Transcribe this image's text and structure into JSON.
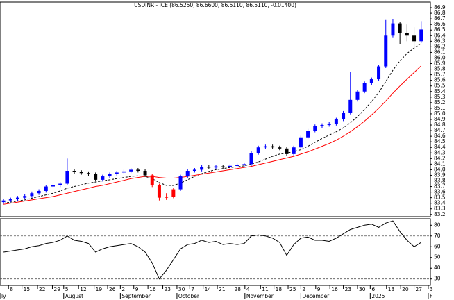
{
  "chart_data": {
    "type": "candlestick",
    "title": "USDINR - ICE (86.5250, 86.6600, 86.5110, 86.5110, -0.01400)",
    "open": [
      83.42,
      83.45,
      83.47,
      83.5,
      83.53,
      83.58,
      83.62,
      83.7,
      83.72,
      83.75,
      83.98,
      83.96,
      83.94,
      83.92,
      83.82,
      83.88,
      83.92,
      83.95,
      83.97,
      84.0,
      83.98,
      83.9,
      83.72,
      83.5,
      83.52,
      83.65,
      83.88,
      83.98,
      84.0,
      84.05,
      84.04,
      84.06,
      84.05,
      84.07,
      84.08,
      84.1,
      84.3,
      84.4,
      84.42,
      84.4,
      84.38,
      84.28,
      84.4,
      84.58,
      84.7,
      84.78,
      84.8,
      84.82,
      84.9,
      85.02,
      85.25,
      85.4,
      85.55,
      85.62,
      85.85,
      86.4,
      86.62,
      86.45,
      86.4,
      86.3
    ],
    "high": [
      83.48,
      83.5,
      83.53,
      83.56,
      83.61,
      83.65,
      83.73,
      83.75,
      83.78,
      84.2,
      84.01,
      83.99,
      83.97,
      83.95,
      83.91,
      83.95,
      83.98,
      84.0,
      84.03,
      84.03,
      84.01,
      83.93,
      83.75,
      83.58,
      83.68,
      83.91,
      84.01,
      84.03,
      84.08,
      84.08,
      84.09,
      84.09,
      84.1,
      84.11,
      84.13,
      84.33,
      84.43,
      84.45,
      84.45,
      84.43,
      84.41,
      84.43,
      84.61,
      84.73,
      84.81,
      84.83,
      84.85,
      84.93,
      85.05,
      85.75,
      85.43,
      85.58,
      85.65,
      85.88,
      86.68,
      86.7,
      86.65,
      86.6,
      86.55,
      86.66
    ],
    "low": [
      83.39,
      83.42,
      83.44,
      83.47,
      83.5,
      83.55,
      83.59,
      83.67,
      83.69,
      83.72,
      83.93,
      83.91,
      83.89,
      83.79,
      83.79,
      83.85,
      83.89,
      83.92,
      83.94,
      83.95,
      83.87,
      83.69,
      83.45,
      83.46,
      83.49,
      83.62,
      83.85,
      83.95,
      83.97,
      84.01,
      84.01,
      84.02,
      84.02,
      84.04,
      84.05,
      84.07,
      84.27,
      84.37,
      84.37,
      84.35,
      84.25,
      84.25,
      84.37,
      84.55,
      84.67,
      84.75,
      84.77,
      84.79,
      84.87,
      84.99,
      85.22,
      85.37,
      85.52,
      85.59,
      85.82,
      86.37,
      86.25,
      86.3,
      86.15,
      86.27
    ],
    "close": [
      83.45,
      83.47,
      83.5,
      83.53,
      83.58,
      83.62,
      83.7,
      83.72,
      83.75,
      83.98,
      83.96,
      83.94,
      83.92,
      83.82,
      83.88,
      83.92,
      83.95,
      83.97,
      84.0,
      83.98,
      83.9,
      83.72,
      83.5,
      83.52,
      83.65,
      83.88,
      83.98,
      84.0,
      84.05,
      84.04,
      84.06,
      84.05,
      84.07,
      84.08,
      84.1,
      84.3,
      84.4,
      84.42,
      84.4,
      84.38,
      84.28,
      84.4,
      84.58,
      84.7,
      84.78,
      84.8,
      84.82,
      84.9,
      85.02,
      85.25,
      85.4,
      85.55,
      85.62,
      85.85,
      86.4,
      86.62,
      86.45,
      86.4,
      86.3,
      86.51
    ],
    "up_color": "#0000ff",
    "down_color": "#000000",
    "below_slow_average_color": "#ff0000",
    "overlays": [
      {
        "color": "#000000",
        "dashed": true,
        "values": [
          83.4,
          83.42,
          83.44,
          83.46,
          83.49,
          83.52,
          83.55,
          83.58,
          83.62,
          83.67,
          83.7,
          83.73,
          83.76,
          83.78,
          83.8,
          83.82,
          83.84,
          83.86,
          83.88,
          83.89,
          83.88,
          83.84,
          83.77,
          83.72,
          83.72,
          83.76,
          83.82,
          83.88,
          83.93,
          83.97,
          84.0,
          84.02,
          84.04,
          84.05,
          84.07,
          84.1,
          84.14,
          84.19,
          84.24,
          84.28,
          84.3,
          84.32,
          84.36,
          84.42,
          84.49,
          84.56,
          84.62,
          84.68,
          84.75,
          84.84,
          84.95,
          85.08,
          85.22,
          85.38,
          85.58,
          85.78,
          85.95,
          86.08,
          86.18,
          86.26
        ]
      },
      {
        "color": "#ff0000",
        "dashed": false,
        "values": [
          83.38,
          83.4,
          83.42,
          83.44,
          83.46,
          83.48,
          83.5,
          83.52,
          83.55,
          83.58,
          83.61,
          83.64,
          83.67,
          83.7,
          83.72,
          83.75,
          83.78,
          83.81,
          83.84,
          83.86,
          83.88,
          83.88,
          83.86,
          83.85,
          83.85,
          83.86,
          83.88,
          83.9,
          83.92,
          83.94,
          83.96,
          83.98,
          84.0,
          84.02,
          84.04,
          84.06,
          84.09,
          84.12,
          84.15,
          84.18,
          84.21,
          84.24,
          84.28,
          84.32,
          84.37,
          84.42,
          84.47,
          84.53,
          84.6,
          84.68,
          84.77,
          84.87,
          84.98,
          85.1,
          85.23,
          85.37,
          85.5,
          85.62,
          85.74,
          85.86
        ]
      }
    ],
    "xlim": [
      -0.5,
      60.3
    ],
    "ylim": [
      83.16,
      87.0
    ],
    "yticks": [
      83.2,
      83.3,
      83.4,
      83.5,
      83.6,
      83.7,
      83.8,
      83.9,
      {
        "value": 84,
        "label": "84.0"
      },
      84.1,
      84.2,
      84.3,
      84.4,
      84.5,
      84.6,
      84.7,
      84.8,
      84.9,
      {
        "value": 85,
        "label": "85.0"
      },
      85.1,
      85.2,
      85.3,
      85.4,
      85.5,
      85.6,
      85.7,
      85.8,
      85.9,
      {
        "value": 86,
        "label": "86.0"
      },
      86.1,
      86.2,
      86.3,
      86.4,
      86.5,
      86.6,
      86.7,
      86.8,
      86.9
    ],
    "day_ticks": [
      {
        "value": 0.7,
        "label": "8"
      },
      {
        "value": 2.6,
        "label": "15"
      },
      {
        "value": 4.8,
        "label": "22"
      },
      {
        "value": 6.9,
        "label": "29"
      },
      {
        "value": 8.5,
        "label": "5"
      },
      {
        "value": 10.6,
        "label": "12"
      },
      {
        "value": 12.8,
        "label": "19"
      },
      {
        "value": 14.7,
        "label": "26"
      },
      {
        "value": 16.5,
        "label": "2"
      },
      {
        "value": 18.4,
        "label": "9"
      },
      {
        "value": 20.4,
        "label": "16"
      },
      {
        "value": 22.5,
        "label": "23"
      },
      {
        "value": 24.5,
        "label": "30"
      },
      {
        "value": 26.3,
        "label": "7"
      },
      {
        "value": 28.2,
        "label": "14"
      },
      {
        "value": 30.2,
        "label": "21"
      },
      {
        "value": 32.4,
        "label": "28"
      },
      {
        "value": 34.1,
        "label": "4"
      },
      {
        "value": 36.3,
        "label": "11"
      },
      {
        "value": 38.2,
        "label": "18"
      },
      {
        "value": 40.2,
        "label": "25"
      },
      {
        "value": 42.0,
        "label": "2"
      },
      {
        "value": 44.1,
        "label": "9"
      },
      {
        "value": 46.1,
        "label": "16"
      },
      {
        "value": 48.0,
        "label": "23"
      },
      {
        "value": 50.0,
        "label": "30"
      },
      {
        "value": 51.8,
        "label": "6"
      },
      {
        "value": 54.1,
        "label": "13"
      },
      {
        "value": 56.1,
        "label": "20"
      },
      {
        "value": 58.0,
        "label": "27"
      },
      {
        "value": 60.0,
        "label": "3"
      }
    ],
    "month_ticks": [
      {
        "value": -0.5,
        "label": "ly"
      },
      {
        "value": 8.5,
        "label": "August"
      },
      {
        "value": 16.5,
        "label": "September"
      },
      {
        "value": 24.5,
        "label": "October"
      },
      {
        "value": 34.1,
        "label": "November"
      },
      {
        "value": 42.0,
        "label": "December"
      },
      {
        "value": 51.8,
        "label": "2025"
      },
      {
        "value": 60.0,
        "label": "F"
      }
    ],
    "indicator": {
      "color": "#000000",
      "values": [
        55,
        56,
        57,
        58,
        60,
        61,
        63,
        64,
        66,
        70,
        66,
        65,
        63,
        55,
        58,
        60,
        61,
        62,
        63,
        60,
        55,
        45,
        30,
        38,
        48,
        58,
        62,
        63,
        66,
        64,
        65,
        62,
        63,
        62,
        63,
        70,
        71,
        70,
        68,
        64,
        52,
        62,
        68,
        69,
        66,
        66,
        65,
        68,
        72,
        76,
        78,
        80,
        81,
        78,
        82,
        84,
        74,
        66,
        60,
        64
      ],
      "ylim": [
        24,
        86
      ],
      "yticks": [
        30,
        40,
        50,
        60,
        70,
        80
      ],
      "reference_lines": [
        70,
        30
      ]
    }
  }
}
